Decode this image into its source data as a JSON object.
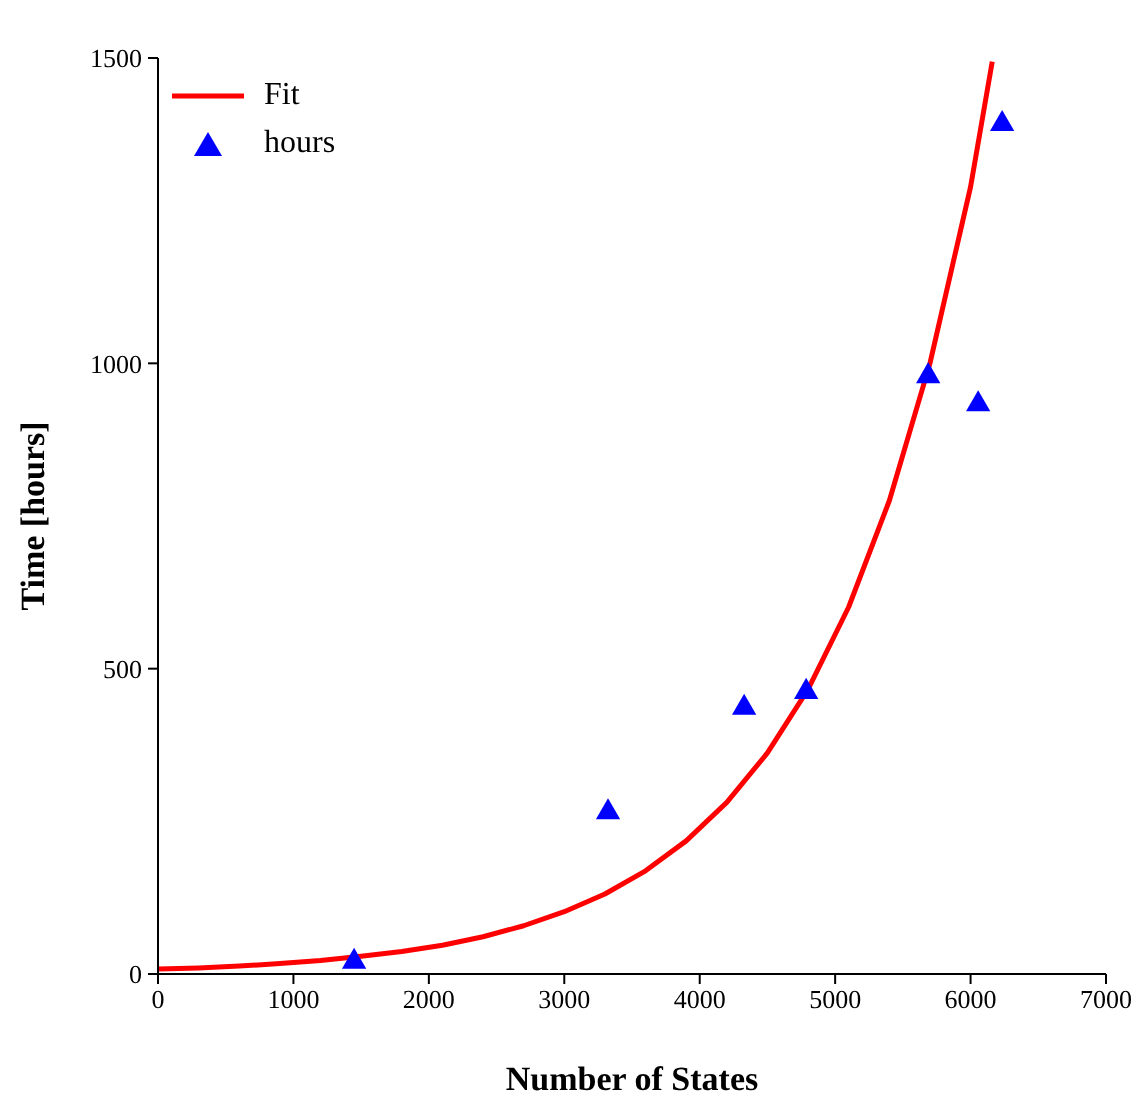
{
  "chart_data": {
    "type": "scatter",
    "xlabel": "Number of States",
    "ylabel": "Time [hours]",
    "xlim": [
      0,
      7000
    ],
    "xticks": [
      0,
      1000,
      2000,
      3000,
      4000,
      5000,
      6000,
      7000
    ],
    "ylim": [
      0,
      1500
    ],
    "yticks": [
      0,
      500,
      1000,
      1500
    ],
    "grid": false,
    "legend": "top left",
    "series": [
      {
        "name": "Fit",
        "type": "line",
        "color": "#ff0000",
        "marker": "none",
        "line_style": "solid",
        "x": [
          0,
          300,
          600,
          900,
          1200,
          1500,
          1800,
          2100,
          2400,
          2700,
          3000,
          3300,
          3600,
          3900,
          4200,
          4500,
          4800,
          5100,
          5400,
          5700,
          6000,
          6160
        ],
        "values": [
          8,
          10,
          13,
          17,
          22,
          29,
          37,
          47,
          61,
          79,
          102,
          131,
          169,
          218,
          281,
          362,
          466,
          601,
          775,
          1000,
          1289,
          1494
        ]
      },
      {
        "name": "hours",
        "color": "#0000ff",
        "marker": "triangle",
        "x": [
          1448,
          3323,
          4328,
          4786,
          5687,
          6056,
          6233
        ],
        "values": [
          20,
          265,
          436,
          462,
          979,
          933,
          1392
        ]
      }
    ]
  }
}
